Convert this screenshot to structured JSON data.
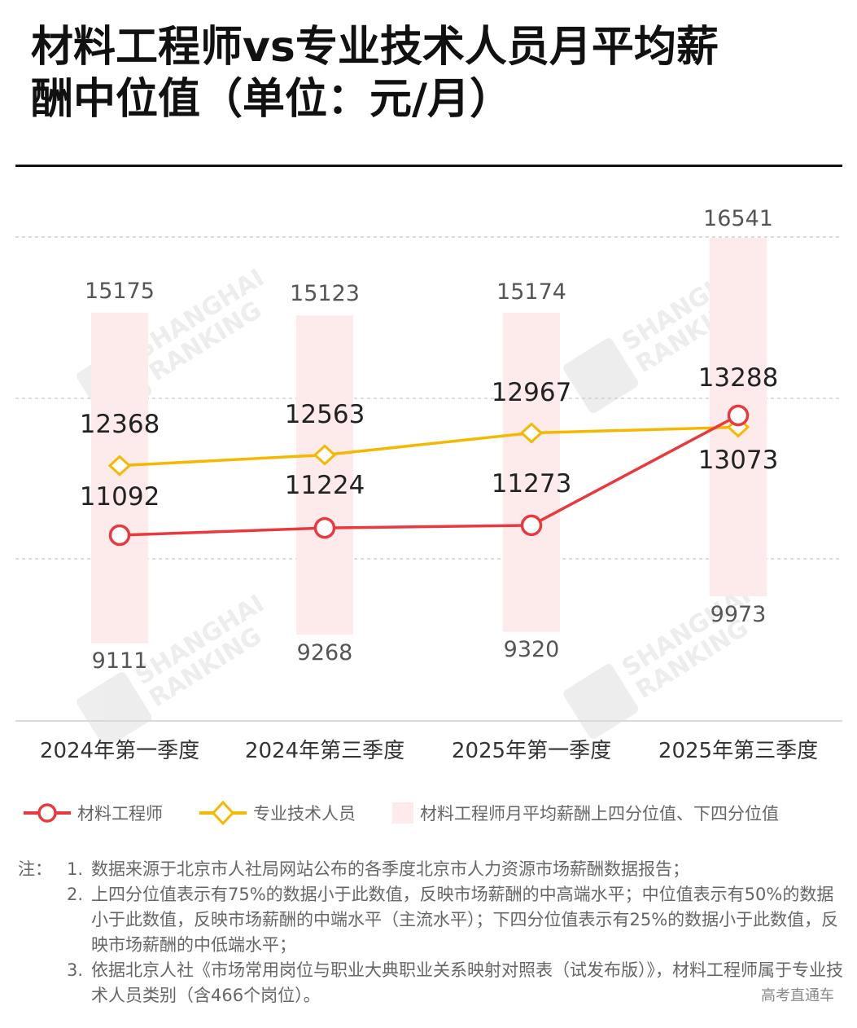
{
  "title": {
    "line1": "材料工程师vs专业技术人员月平均薪",
    "line2": "酬中位值（单位：元/月）"
  },
  "colors": {
    "materials_engineer": "#e8393f",
    "professional_tech": "#f5b800",
    "iqr_band": "#fdeaea",
    "gridline": "#cfcfcf",
    "title_rule": "#111111"
  },
  "chart_data": {
    "type": "line",
    "title": "材料工程师vs专业技术人员月平均薪酬中位值（单位：元/月）",
    "xlabel": "",
    "ylabel": "",
    "categories": [
      "2024年第一季度",
      "2024年第三季度",
      "2025年第一季度",
      "2025年第三季度"
    ],
    "series": [
      {
        "name": "材料工程师",
        "type": "line",
        "marker": "circle",
        "color": "#e8393f",
        "values": [
          11092,
          11224,
          11273,
          13288
        ]
      },
      {
        "name": "专业技术人员",
        "type": "line",
        "marker": "diamond",
        "color": "#f5b800",
        "values": [
          12368,
          12563,
          12967,
          13073
        ]
      },
      {
        "name": "材料工程师月平均薪酬上四分位值、下四分位值",
        "type": "range_bar",
        "color": "#fdeaea",
        "upper": [
          15175,
          15123,
          15174,
          16541
        ],
        "lower": [
          9111,
          9268,
          9320,
          9973
        ]
      }
    ],
    "grid": true,
    "legend_position": "bottom"
  },
  "labels": {
    "upper": [
      "15175",
      "15123",
      "15174",
      "16541"
    ],
    "lower": [
      "9111",
      "9268",
      "9320",
      "9973"
    ],
    "engineer": [
      "11092",
      "11224",
      "11273",
      "13288"
    ],
    "professional": [
      "12368",
      "12563",
      "12967",
      "13073"
    ]
  },
  "xaxis": {
    "labels": [
      "2024年第一季度",
      "2024年第三季度",
      "2025年第一季度",
      "2025年第三季度"
    ]
  },
  "legend": {
    "items": [
      {
        "label": "材料工程师",
        "icon": "line-circle-marker"
      },
      {
        "label": "专业技术人员",
        "icon": "line-diamond-marker"
      },
      {
        "label": "材料工程师月平均薪酬上四分位值、下四分位值",
        "icon": "pink-square"
      }
    ]
  },
  "notes": {
    "prefix": "注：",
    "items": [
      {
        "num": "1.",
        "text": "数据来源于北京市人社局网站公布的各季度北京市人力资源市场薪酬数据报告；"
      },
      {
        "num": "2.",
        "text": "上四分位值表示有75%的数据小于此数值，反映市场薪酬的中高端水平；中位值表示有50%的数据小于此数值，反映市场薪酬的中端水平（主流水平）；下四分位值表示有25%的数据小于此数值，反映市场薪酬的中低端水平；"
      },
      {
        "num": "3.",
        "text": "依据北京人社《市场常用岗位与职业大典职业关系映射对照表（试发布版）》，材料工程师属于专业技术人员类别（含466个岗位）。"
      }
    ]
  },
  "watermark": {
    "brand_line1": "SHANGHAI",
    "brand_line2": "RANKING",
    "source_tag": "高考直通车"
  }
}
